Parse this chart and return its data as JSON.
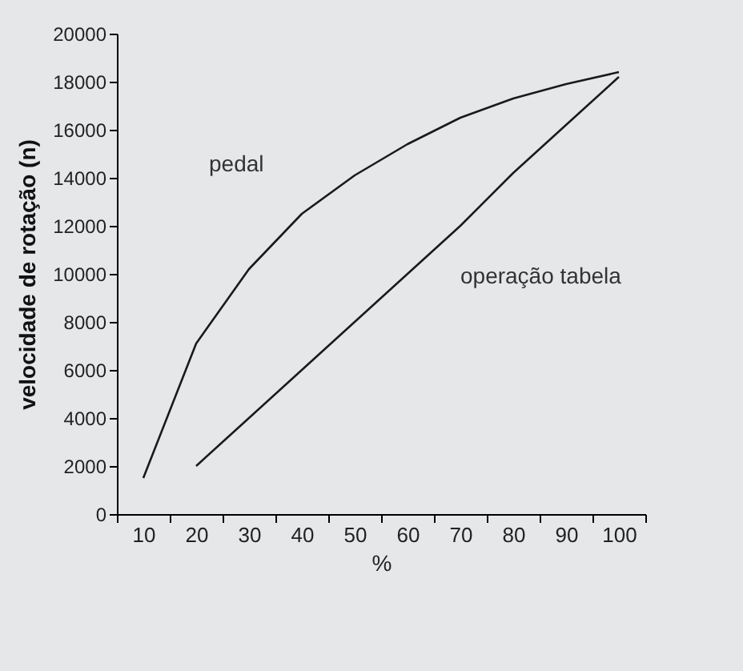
{
  "chart_data": {
    "type": "line",
    "xlabel": "%",
    "ylabel": "velocidade de rotação (n)",
    "categories": [
      "10",
      "20",
      "30",
      "40",
      "50",
      "60",
      "70",
      "80",
      "90",
      "100"
    ],
    "ylim": [
      0,
      20000
    ],
    "yticks": [
      0,
      2000,
      4000,
      6000,
      8000,
      10000,
      12000,
      14000,
      16000,
      18000,
      20000
    ],
    "grid": false,
    "legend": false,
    "marker": "none",
    "line_style": "solid",
    "series": [
      {
        "name": "pedal",
        "color": "#1a1a1a",
        "values": [
          1500,
          7100,
          10200,
          12500,
          14100,
          15400,
          16500,
          17300,
          17900,
          18400
        ]
      },
      {
        "name": "operação tabela",
        "color": "#1a1a1a",
        "values": [
          null,
          2000,
          4000,
          6000,
          8000,
          10000,
          12000,
          14200,
          16200,
          18200
        ]
      }
    ]
  }
}
